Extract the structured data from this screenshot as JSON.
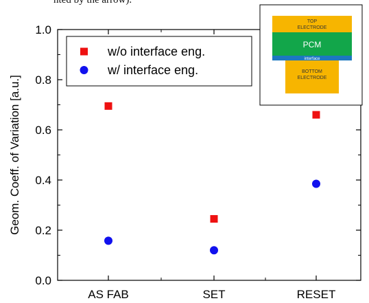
{
  "caption": "nted by the arrow).",
  "chart_data": {
    "type": "scatter",
    "categories": [
      "AS FAB",
      "SET",
      "RESET"
    ],
    "ylabel": "Geom. Coeff. of Variation [a.u.]",
    "ylim": [
      0.0,
      1.0
    ],
    "yticks": [
      "0.0",
      "0.2",
      "0.4",
      "0.6",
      "0.8",
      "1.0"
    ],
    "series": [
      {
        "name": "w/o interface eng.",
        "marker": "square",
        "color": "#ee1111",
        "values": [
          0.695,
          0.245,
          0.66
        ]
      },
      {
        "name": "w/ interface eng.",
        "marker": "circle",
        "color": "#1111ee",
        "values": [
          0.158,
          0.12,
          0.385
        ]
      }
    ],
    "legend_position": "top-left",
    "inset": {
      "top_electrode": [
        "TOP",
        "ELECTRODE"
      ],
      "pcm": "PCM",
      "interface": "interface",
      "bottom_electrode": [
        "BOTTOM",
        "ELECTRODE"
      ],
      "colors": {
        "electrode": "#f7b500",
        "pcm": "#12a64a",
        "interface": "#1c78c0"
      }
    }
  }
}
